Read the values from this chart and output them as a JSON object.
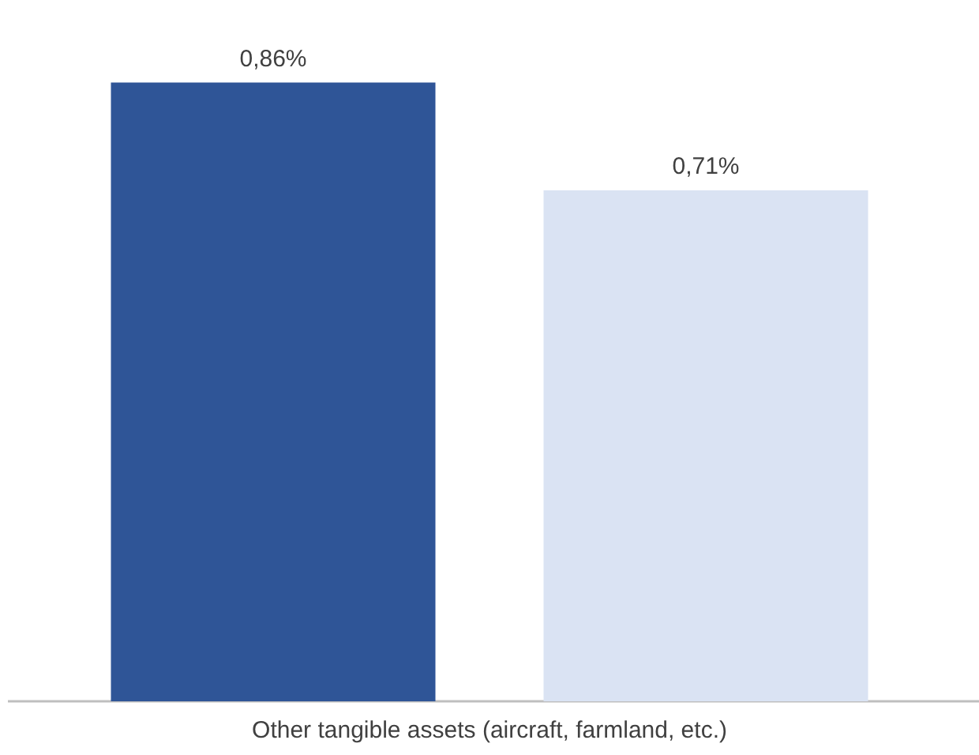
{
  "chart_data": {
    "type": "bar",
    "categories": [
      null,
      null
    ],
    "xlabel": "Other tangible assets (aircraft, farmland, etc.)",
    "values": [
      0.86,
      0.71
    ],
    "colors": [
      "#2f5597",
      "#dae3f3"
    ],
    "value_labels": [
      "0,86%",
      "0,71%"
    ],
    "tick_labels": false,
    "grid": false,
    "legend": false
  }
}
